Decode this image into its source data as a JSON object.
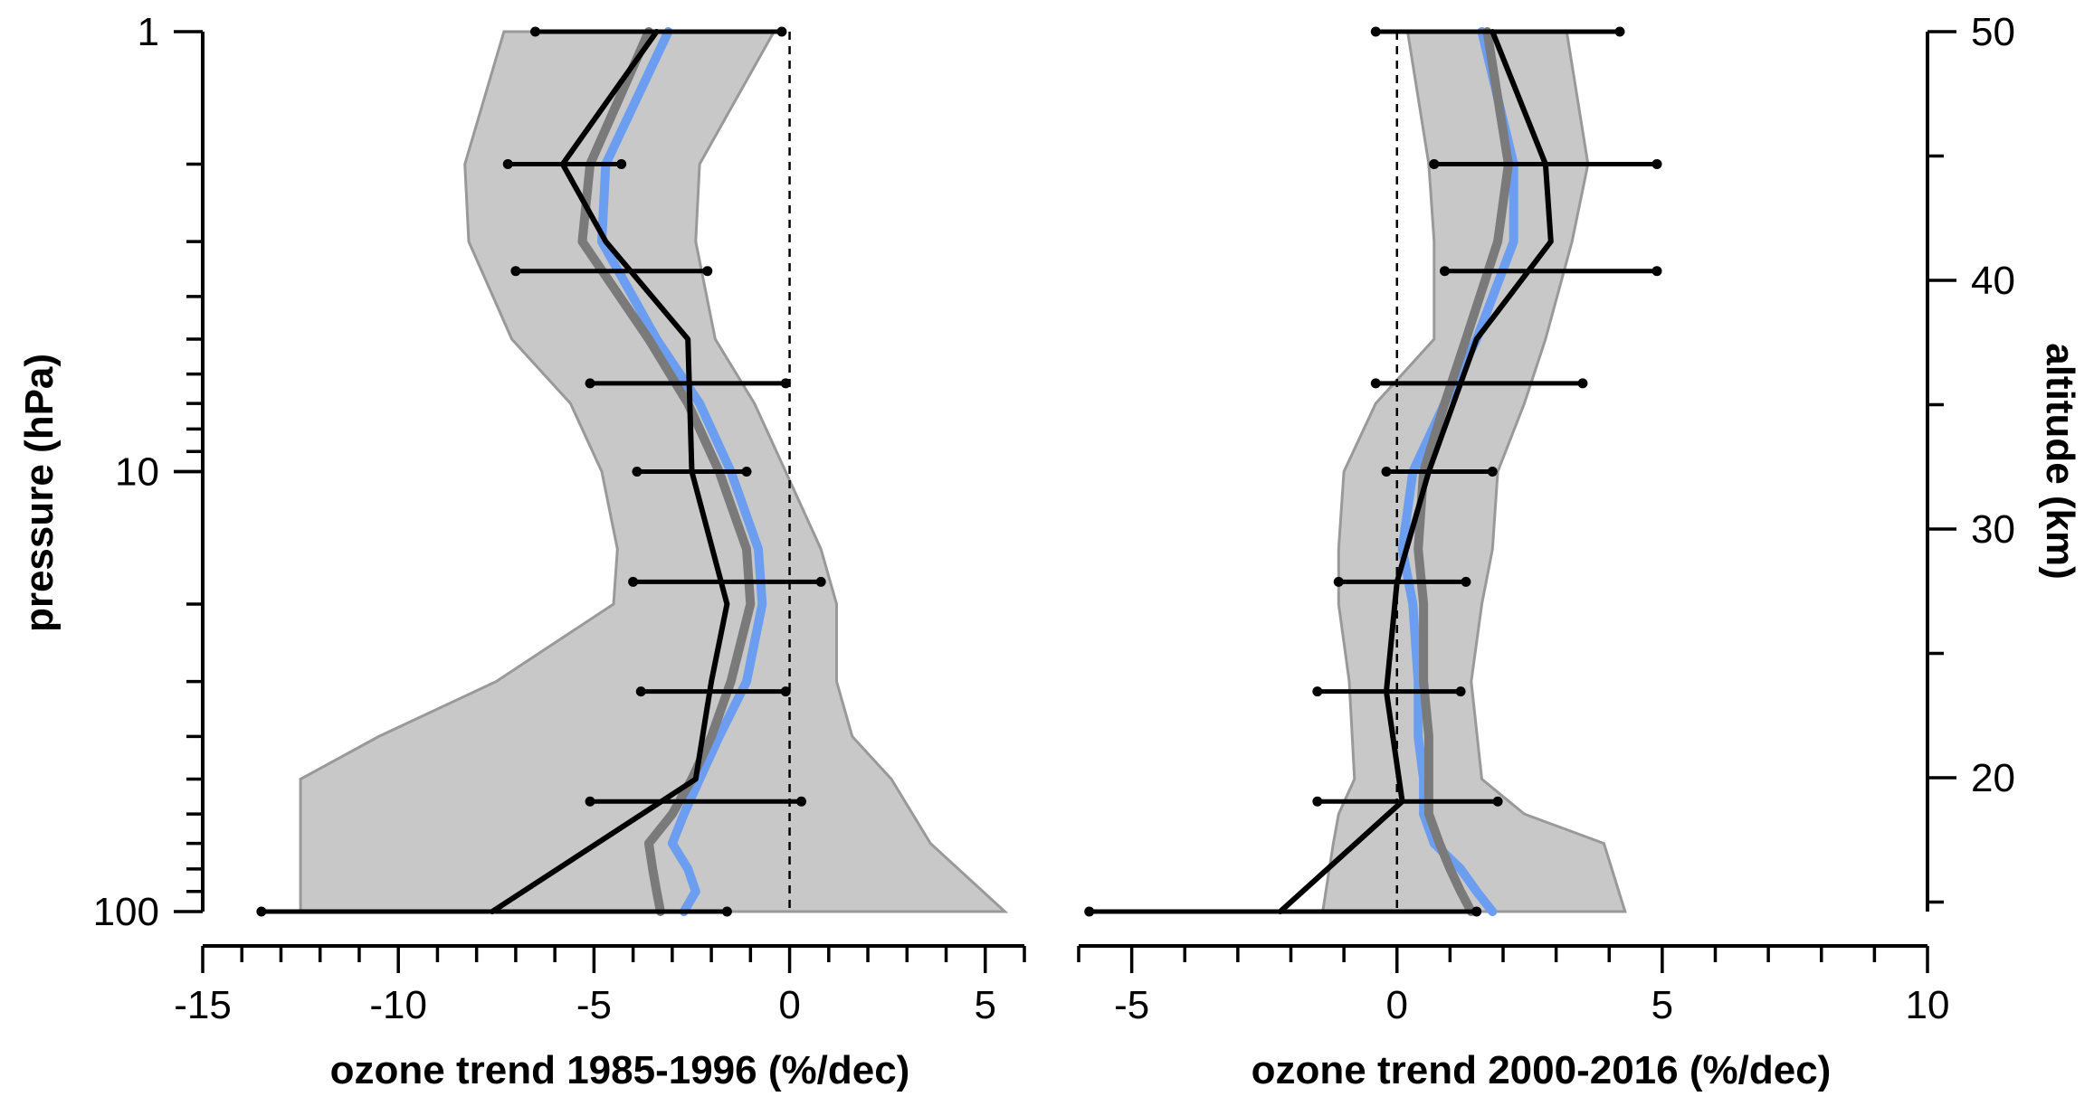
{
  "chart_data": [
    {
      "type": "line",
      "panel": "left",
      "xlabel": "ozone trend 1985-1996 (%/dec)",
      "ylabel": "pressure (hPa)",
      "xlim": [
        -15,
        6
      ],
      "ylim": [
        100,
        1
      ],
      "yscale": "log",
      "x_ticks": [
        -15,
        -10,
        -5,
        0,
        5
      ],
      "y_ticks": [
        1,
        10,
        100
      ],
      "zero_line": true,
      "grid": false,
      "colors": {
        "band": "#c8c8c8",
        "band_edge": "#999999",
        "blue": "#6b9ef0",
        "gray": "#7a7a7a",
        "black": "#000000"
      },
      "band": {
        "pressure": [
          1,
          2,
          3,
          5,
          7,
          10,
          15,
          20,
          30,
          40,
          50,
          70,
          100
        ],
        "lower": [
          -7.3,
          -8.3,
          -8.2,
          -7.1,
          -5.6,
          -4.8,
          -4.4,
          -4.5,
          -7.5,
          -10.5,
          -12.5,
          -12.5,
          -12.5
        ],
        "upper": [
          -0.4,
          -2.3,
          -2.4,
          -1.9,
          -0.9,
          -0.1,
          0.8,
          1.2,
          1.2,
          1.6,
          2.6,
          3.6,
          5.5
        ]
      },
      "series": [
        {
          "color": "blue",
          "pressure": [
            1,
            2,
            3,
            5,
            7,
            10,
            15,
            20,
            30,
            40,
            50,
            60,
            70,
            80,
            90,
            100
          ],
          "values": [
            -3.1,
            -4.7,
            -4.8,
            -3.4,
            -2.3,
            -1.5,
            -0.8,
            -0.7,
            -1.1,
            -1.8,
            -2.3,
            -2.7,
            -3.0,
            -2.6,
            -2.4,
            -2.7
          ]
        },
        {
          "color": "gray",
          "pressure": [
            1,
            2,
            3,
            5,
            7,
            10,
            15,
            20,
            30,
            40,
            50,
            60,
            70,
            80,
            90,
            100
          ],
          "values": [
            -3.6,
            -5.1,
            -5.3,
            -3.6,
            -2.6,
            -1.8,
            -1.1,
            -1.0,
            -1.5,
            -2.0,
            -2.5,
            -3.0,
            -3.6,
            -3.5,
            -3.4,
            -3.3
          ]
        },
        {
          "color": "black",
          "pressure": [
            1,
            2,
            3,
            5,
            10,
            20,
            30,
            50,
            100
          ],
          "values": [
            -3.4,
            -5.8,
            -4.7,
            -2.6,
            -2.5,
            -1.6,
            -2.0,
            -2.4,
            -7.6
          ]
        }
      ],
      "error_bars": [
        {
          "pressure": 1,
          "x": -3.4,
          "low": -6.5,
          "high": -0.2
        },
        {
          "pressure": 2,
          "x": -5.8,
          "low": -7.2,
          "high": -4.3
        },
        {
          "pressure": 3.5,
          "x": -4.7,
          "low": -7.0,
          "high": -2.1
        },
        {
          "pressure": 6.3,
          "x": -2.6,
          "low": -5.1,
          "high": -0.1
        },
        {
          "pressure": 10,
          "x": -2.5,
          "low": -3.9,
          "high": -1.1
        },
        {
          "pressure": 17.8,
          "x": -1.6,
          "low": -4.0,
          "high": 0.8
        },
        {
          "pressure": 31.6,
          "x": -2.0,
          "low": -3.8,
          "high": -0.1
        },
        {
          "pressure": 56.2,
          "x": -2.4,
          "low": -5.1,
          "high": 0.3
        },
        {
          "pressure": 100,
          "x": -7.6,
          "low": -13.5,
          "high": -1.6
        }
      ]
    },
    {
      "type": "line",
      "panel": "right",
      "xlabel": "ozone trend 2000-2016 (%/dec)",
      "ylabel": "altitude (km)",
      "xlim": [
        -6,
        10
      ],
      "ylim": [
        15,
        50
      ],
      "x_ticks": [
        -5,
        0,
        5,
        10
      ],
      "y_ticks": [
        20,
        30,
        40,
        50
      ],
      "zero_line": true,
      "grid": false,
      "band": {
        "pressure": [
          1,
          2,
          3,
          5,
          7,
          10,
          15,
          20,
          30,
          50,
          60,
          70,
          100
        ],
        "lower": [
          0.2,
          0.6,
          0.7,
          0.7,
          -0.4,
          -1.0,
          -1.1,
          -1.1,
          -0.9,
          -0.8,
          -1.1,
          -1.2,
          -1.4
        ],
        "upper": [
          3.2,
          3.6,
          3.3,
          2.8,
          2.4,
          1.9,
          1.8,
          1.6,
          1.4,
          1.6,
          2.4,
          3.9,
          4.3
        ]
      },
      "series": [
        {
          "color": "blue",
          "pressure": [
            1,
            2,
            3,
            5,
            7,
            10,
            15,
            20,
            30,
            40,
            50,
            60,
            70,
            80,
            90,
            100
          ],
          "values": [
            1.6,
            2.2,
            2.2,
            1.5,
            0.9,
            0.3,
            0.1,
            0.3,
            0.4,
            0.4,
            0.5,
            0.5,
            0.7,
            1.2,
            1.5,
            1.8
          ]
        },
        {
          "color": "gray",
          "pressure": [
            1,
            2,
            3,
            5,
            7,
            10,
            15,
            20,
            30,
            40,
            50,
            60,
            70,
            80,
            90,
            100
          ],
          "values": [
            1.7,
            2.1,
            1.9,
            1.3,
            0.9,
            0.5,
            0.4,
            0.5,
            0.5,
            0.6,
            0.6,
            0.6,
            0.8,
            1.0,
            1.2,
            1.4
          ]
        },
        {
          "color": "black",
          "pressure": [
            1,
            2,
            3,
            5,
            10,
            17.8,
            31.6,
            56.2,
            100
          ],
          "values": [
            1.8,
            2.8,
            2.9,
            1.5,
            0.6,
            0.0,
            -0.2,
            0.1,
            -2.2
          ]
        }
      ],
      "error_bars": [
        {
          "pressure": 1,
          "x": 1.8,
          "low": -0.4,
          "high": 4.2
        },
        {
          "pressure": 2,
          "x": 2.8,
          "low": 0.7,
          "high": 4.9
        },
        {
          "pressure": 3.5,
          "x": 2.9,
          "low": 0.9,
          "high": 4.9
        },
        {
          "pressure": 6.3,
          "x": 1.5,
          "low": -0.4,
          "high": 3.5
        },
        {
          "pressure": 10,
          "x": 0.6,
          "low": -0.2,
          "high": 1.8
        },
        {
          "pressure": 17.8,
          "x": 0.0,
          "low": -1.1,
          "high": 1.3
        },
        {
          "pressure": 31.6,
          "x": -0.2,
          "low": -1.5,
          "high": 1.2
        },
        {
          "pressure": 56.2,
          "x": 0.1,
          "low": -1.5,
          "high": 1.9
        },
        {
          "pressure": 100,
          "x": -2.2,
          "low": -5.8,
          "high": 1.5
        }
      ]
    }
  ]
}
